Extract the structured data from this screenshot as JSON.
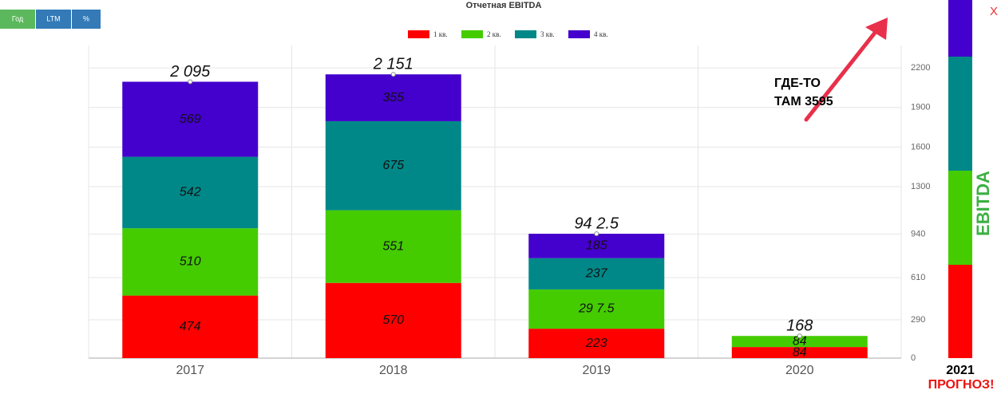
{
  "buttons": [
    "Год",
    "LTM",
    "%"
  ],
  "close": "X",
  "annotation": [
    "ГДЕ-ТО",
    "ТАМ 3595"
  ],
  "forecast": {
    "axis_label": "EBITDA",
    "year": "2021",
    "label": "ПРОГНОЗ!"
  },
  "chart_data": {
    "type": "stacked_bar",
    "title": "Отчетная EBITDA",
    "categories": [
      "2017",
      "2018",
      "2019",
      "2020"
    ],
    "series": [
      {
        "name": "1 кв.",
        "color": "#ff0000",
        "values": [
          474,
          570,
          223,
          84
        ]
      },
      {
        "name": "2 кв.",
        "color": "#44cc00",
        "values": [
          510,
          551,
          297.5,
          84
        ],
        "value_labels": [
          "510",
          "551",
          "29 7.5",
          "84"
        ]
      },
      {
        "name": "3 кв.",
        "color": "#008888",
        "values": [
          542,
          675,
          237,
          null
        ]
      },
      {
        "name": "4 кв.",
        "color": "#4400cc",
        "values": [
          569,
          355,
          185,
          null
        ]
      }
    ],
    "totals": {
      "values": [
        2095,
        2151,
        942.5,
        168
      ],
      "value_labels": [
        "2 095",
        "2 151",
        "94 2.5",
        "168"
      ]
    },
    "ylim": [
      0,
      2370
    ],
    "yticks": [
      0,
      290,
      610,
      940,
      1300,
      1600,
      1900,
      2200
    ],
    "y_axis_side": "right",
    "grid": true
  }
}
